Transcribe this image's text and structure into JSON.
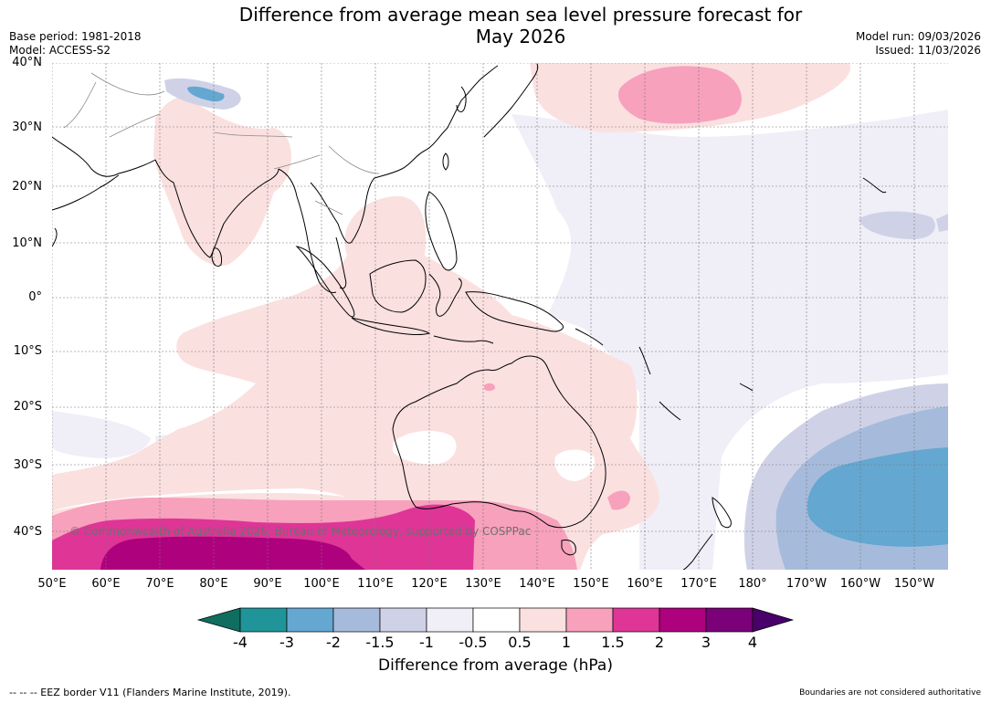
{
  "title_line1": "Difference from average mean sea level pressure forecast for",
  "title_line2": "May 2026",
  "meta_left": {
    "base_period": "Base period: 1981-2018",
    "model": "Model: ACCESS-S2"
  },
  "meta_right": {
    "model_run": "Model run: 09/03/2026",
    "issued": "Issued: 11/03/2026"
  },
  "lat_labels": [
    "40°N",
    "30°N",
    "20°N",
    "10°N",
    "0°",
    "10°S",
    "20°S",
    "30°S",
    "40°S"
  ],
  "lon_labels": [
    "50°E",
    "60°E",
    "70°E",
    "80°E",
    "90°E",
    "100°E",
    "110°E",
    "120°E",
    "130°E",
    "140°E",
    "150°E",
    "160°E",
    "170°E",
    "180°",
    "170°W",
    "160°W",
    "150°W"
  ],
  "colorbar": {
    "label": "Difference from average (hPa)",
    "ticks": [
      "-4",
      "-3",
      "-2",
      "-1.5",
      "-1",
      "-0.5",
      "0.5",
      "1",
      "1.5",
      "2",
      "3",
      "4"
    ],
    "colors": [
      "#0f6e5f",
      "#1f9599",
      "#64a7d1",
      "#a6bbdb",
      "#cfd2e7",
      "#f0eef6",
      "#ffffff",
      "#fbe0e0",
      "#f7a1bc",
      "#de3597",
      "#ae017e",
      "#7a0177",
      "#49006a"
    ]
  },
  "copyright": "© Commonwealth of Australia 2026, Bureau of Meteorology, supported by COSPPac",
  "footer_left": "--  --  -- EEZ border V11 (Flanders Marine Institute, 2019).",
  "footer_right": "Boundaries are not considered authoritative"
}
